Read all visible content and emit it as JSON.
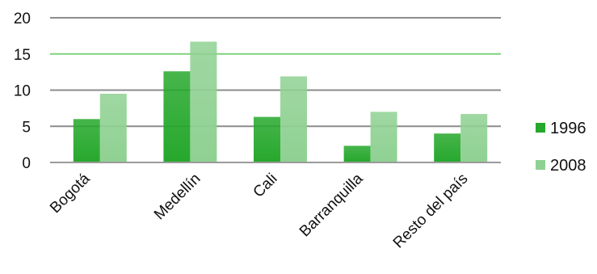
{
  "chart_data": {
    "type": "bar",
    "categories": [
      "Bogotá",
      "Medellín",
      "Cali",
      "Barranquilla",
      "Resto del país"
    ],
    "series": [
      {
        "name": "1996",
        "color": "#26a82c",
        "values": [
          6,
          12.6,
          6.3,
          2.3,
          4
        ]
      },
      {
        "name": "2008",
        "color": "#8fd192",
        "values": [
          9.5,
          16.7,
          11.9,
          7,
          6.7
        ]
      }
    ],
    "y_ticks": [
      "0",
      "5",
      "10",
      "15",
      "20"
    ],
    "ylim": [
      0,
      20
    ],
    "grid": true,
    "highlight_gridline": {
      "value": 15,
      "color": "#7fd27f"
    },
    "legend": "right",
    "title": "",
    "xlabel": "",
    "ylabel": ""
  }
}
